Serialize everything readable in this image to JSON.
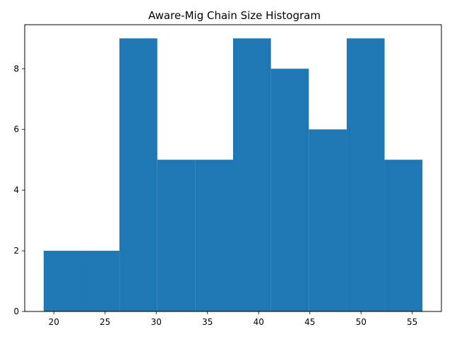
{
  "chart_data": {
    "type": "bar",
    "title": "Aware-Mig Chain Size Histogram",
    "xlabel": "",
    "ylabel": "",
    "bins": [
      {
        "x0": 19.0,
        "x1": 22.7,
        "count": 2
      },
      {
        "x0": 22.7,
        "x1": 26.4,
        "count": 2
      },
      {
        "x0": 26.4,
        "x1": 30.1,
        "count": 9
      },
      {
        "x0": 30.1,
        "x1": 33.8,
        "count": 5
      },
      {
        "x0": 33.8,
        "x1": 37.5,
        "count": 5
      },
      {
        "x0": 37.5,
        "x1": 41.2,
        "count": 9
      },
      {
        "x0": 41.2,
        "x1": 44.9,
        "count": 8
      },
      {
        "x0": 44.9,
        "x1": 48.6,
        "count": 6
      },
      {
        "x0": 48.6,
        "x1": 52.3,
        "count": 9
      },
      {
        "x0": 52.3,
        "x1": 56.0,
        "count": 5
      }
    ],
    "xlim": [
      17.15,
      57.85
    ],
    "ylim": [
      0,
      9.45
    ],
    "xticks": [
      20,
      25,
      30,
      35,
      40,
      45,
      50,
      55
    ],
    "yticks": [
      0,
      2,
      4,
      6,
      8
    ],
    "bar_color": "#1f77b4",
    "grid": false
  }
}
